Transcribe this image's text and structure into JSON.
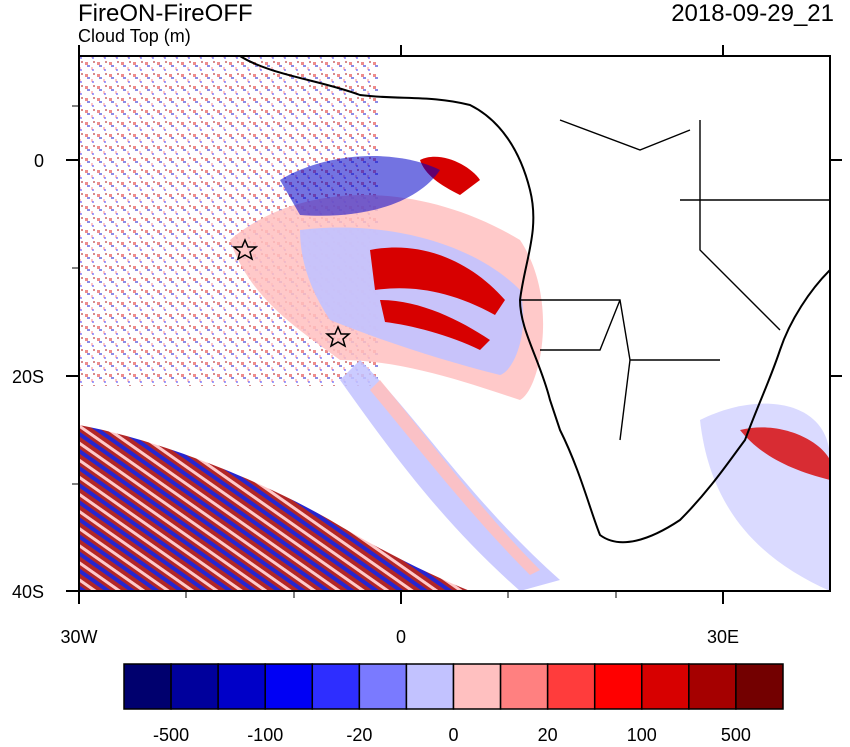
{
  "titles": {
    "left": "FireON-FireOFF",
    "left_sub": "Cloud Top (m)",
    "right": "2018-09-29_21"
  },
  "axes": {
    "x_ticks": [
      "30W",
      "0",
      "30E"
    ],
    "y_ticks": [
      "0",
      "20S",
      "40S"
    ],
    "lon_range": [
      -30,
      40
    ],
    "lat_range": [
      10,
      -40
    ]
  },
  "colorbar": {
    "labels": [
      "-500",
      "-100",
      "-20",
      "0",
      "20",
      "100",
      "500"
    ],
    "colors": [
      "#00006e",
      "#00009c",
      "#0000c8",
      "#0000f5",
      "#2e2eff",
      "#7a7aff",
      "#c2c2ff",
      "#ffc0c0",
      "#ff8080",
      "#ff3c3c",
      "#ff0000",
      "#d70000",
      "#a50000",
      "#730000"
    ]
  },
  "markers": {
    "type": "star",
    "count": 2
  }
}
